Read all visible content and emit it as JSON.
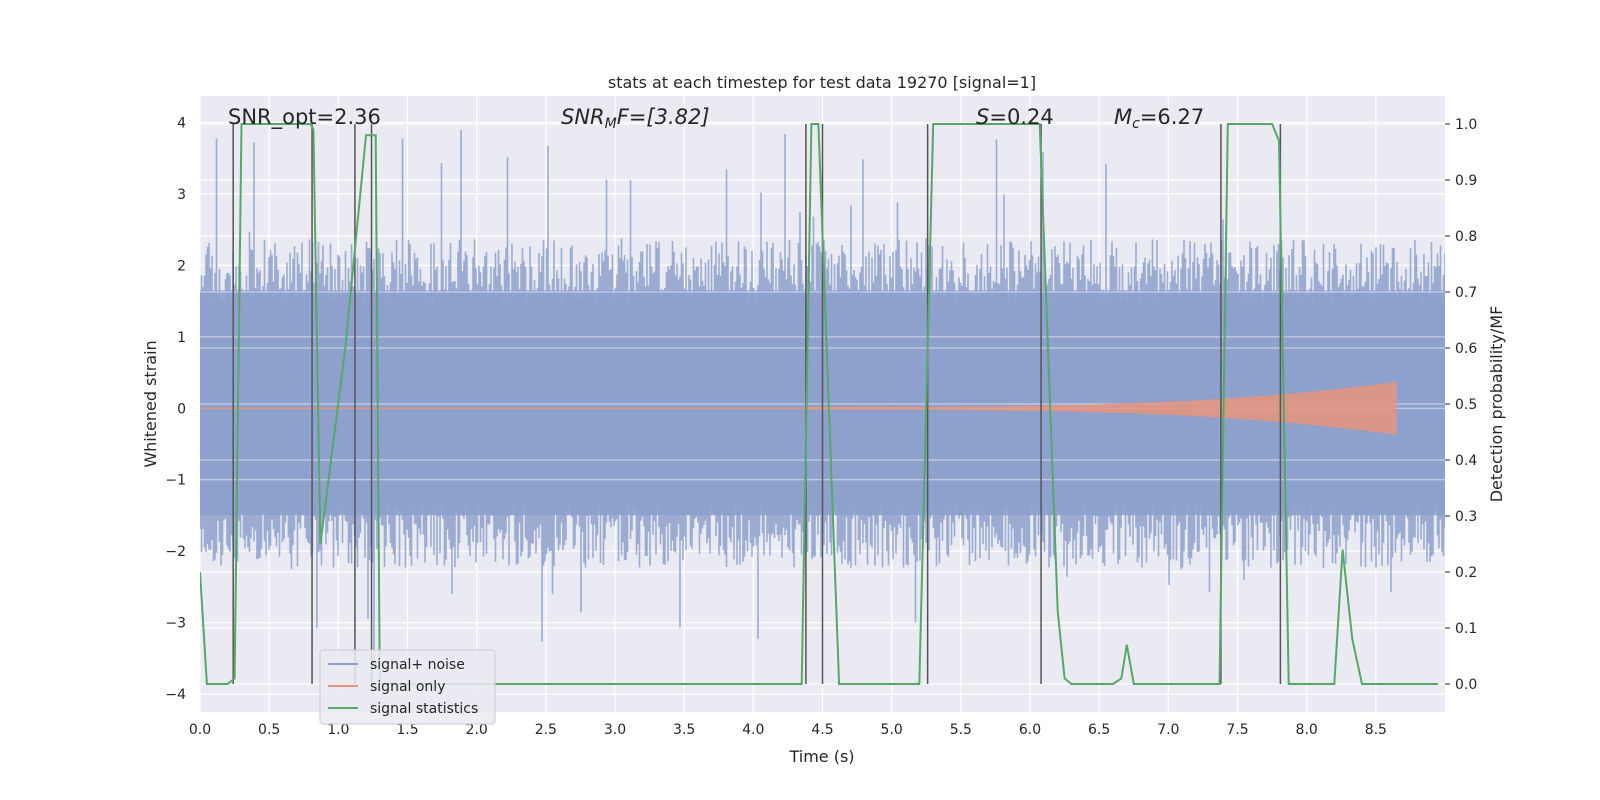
{
  "chart_data": {
    "type": "line",
    "title": "stats at each timestep for test data 19270 [signal=1]",
    "xlabel": "Time (s)",
    "ylabel_left": "Whitened strain",
    "ylabel_right": "Detection probability/MF",
    "xlim": [
      0.0,
      9.0
    ],
    "ylim_left": [
      -4.25,
      4.37
    ],
    "ylim_right": [
      -0.05,
      1.05
    ],
    "x_ticks": [
      "0.0",
      "0.5",
      "1.0",
      "1.5",
      "2.0",
      "2.5",
      "3.0",
      "3.5",
      "4.0",
      "4.5",
      "5.0",
      "5.5",
      "6.0",
      "6.5",
      "7.0",
      "7.5",
      "8.0",
      "8.5"
    ],
    "y_left_ticks": [
      "4",
      "3",
      "2",
      "1",
      "0",
      "−1",
      "−2",
      "−3",
      "−4"
    ],
    "y_right_ticks": [
      "1.0",
      "0.9",
      "0.8",
      "0.7",
      "0.6",
      "0.5",
      "0.4",
      "0.3",
      "0.2",
      "0.1",
      "0.0"
    ],
    "grid": true,
    "legend_position": "lower-left",
    "annotations": [
      "SNR_opt=2.36",
      "SNR_MF=[3.82]",
      "S=0.24",
      "M_c=6.27"
    ],
    "annotation_parts": {
      "snr_opt": "SNR_opt=2.36",
      "snr_mf_main": "SNR",
      "snr_mf_sub": "M",
      "snr_mf_tail": "F=[3.82]",
      "s_main": "S",
      "s_tail": "=0.24",
      "mc_main": "M",
      "mc_sub": "c",
      "mc_tail": "=6.27"
    },
    "series": [
      {
        "name": "signal+ noise",
        "color": "#8da0cb",
        "kind": "noise-envelope",
        "core_band": [
          -1.5,
          1.65
        ],
        "typical_peak": 2.4,
        "extreme_range": [
          -3.65,
          3.95
        ]
      },
      {
        "name": "signal only",
        "color": "#e8947a",
        "kind": "chirp",
        "x_range": [
          4.4,
          8.65
        ],
        "peak_amplitude": 0.35,
        "peak_x": 8.6
      },
      {
        "name": "signal statistics",
        "color": "#55a868",
        "axis": "right",
        "x": [
          0.0,
          0.05,
          0.2,
          0.25,
          0.3,
          0.8,
          0.82,
          0.87,
          1.05,
          1.2,
          1.27,
          1.3,
          4.35,
          4.42,
          4.47,
          4.62,
          5.2,
          5.3,
          6.07,
          6.2,
          6.25,
          6.3,
          6.6,
          6.66,
          6.7,
          6.75,
          7.37,
          7.43,
          7.75,
          7.8,
          7.87,
          8.2,
          8.26,
          8.33,
          8.4,
          8.95
        ],
        "values": [
          0.2,
          0.0,
          0.0,
          0.01,
          1.0,
          1.0,
          0.99,
          0.25,
          0.6,
          0.98,
          0.98,
          0.0,
          0.0,
          1.0,
          1.0,
          0.0,
          0.0,
          1.0,
          1.0,
          0.13,
          0.01,
          0.0,
          0.0,
          0.01,
          0.07,
          0.0,
          0.0,
          1.0,
          1.0,
          0.97,
          0.0,
          0.0,
          0.24,
          0.08,
          0.0,
          0.0
        ]
      }
    ],
    "vertical_markers_x": [
      0.24,
      0.81,
      1.12,
      1.24,
      4.38,
      4.5,
      5.26,
      6.08,
      7.38,
      7.81
    ]
  }
}
